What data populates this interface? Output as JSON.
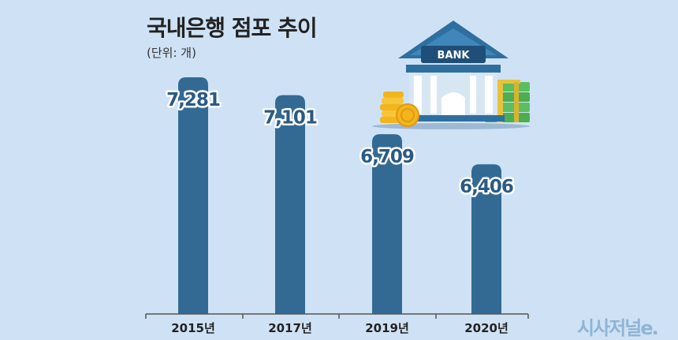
{
  "chart_data": {
    "type": "bar",
    "title": "국내은행 점포 추이",
    "unit_label": "(단위: 개)",
    "categories": [
      "2015년",
      "2017년",
      "2019년",
      "2020년"
    ],
    "values": [
      7281,
      7101,
      6709,
      6406
    ],
    "value_labels": [
      "7,281",
      "7,101",
      "6,709",
      "6,406"
    ],
    "ylim": [
      4900,
      7281
    ],
    "bar_color": "#336a94",
    "grid": false,
    "legend": "none"
  },
  "illustration": {
    "bank_sign": "BANK",
    "icons": [
      "bank-building-icon",
      "coin-stack-icon",
      "cash-stack-icon"
    ]
  },
  "brand": {
    "name": "시사저널e."
  },
  "colors": {
    "background": "#cfe2f5",
    "bar": "#336a94",
    "value_text": "#2a5a84"
  }
}
